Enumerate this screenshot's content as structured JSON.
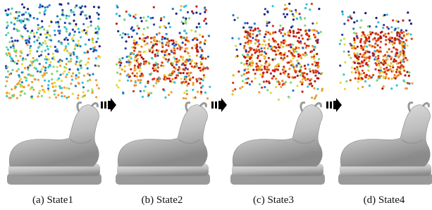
{
  "panels": [
    {
      "caption": "(a) State1"
    },
    {
      "caption": "(b) State2"
    },
    {
      "caption": "(c) State3"
    },
    {
      "caption": "(d) State4"
    }
  ]
}
